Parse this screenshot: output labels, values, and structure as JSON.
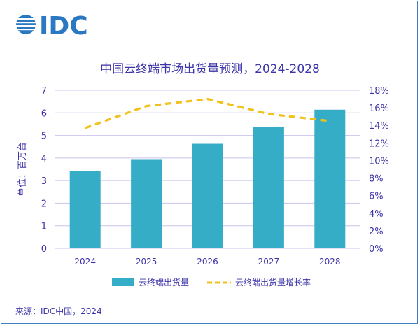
{
  "logo": {
    "text": "IDC"
  },
  "source": "来源：IDC中国，2024",
  "colors": {
    "bar": "#36adc6",
    "line": "#f2c11c",
    "axis_text": "#3c34a8",
    "grid": "#c9c4ee",
    "title": "#3c34a8",
    "logo": "#2a78c2"
  },
  "chart_data": {
    "type": "bar+line",
    "title": "中国云终端市场出货量预测，2024-2028",
    "ylabel": "单位：百万台",
    "categories": [
      "2024",
      "2025",
      "2026",
      "2027",
      "2028"
    ],
    "ylim": [
      0,
      7
    ],
    "y2lim": [
      0,
      18
    ],
    "yticks": [
      "0",
      "1",
      "2",
      "3",
      "4",
      "5",
      "6",
      "7"
    ],
    "y2ticks": [
      "0%",
      "2%",
      "4%",
      "6%",
      "8%",
      "10%",
      "12%",
      "14%",
      "16%",
      "18%"
    ],
    "grid": true,
    "legend_position": "bottom",
    "series": [
      {
        "name": "云终端出货量",
        "type": "bar",
        "axis": "left",
        "values": [
          3.41,
          3.95,
          4.63,
          5.39,
          6.14
        ]
      },
      {
        "name": "云终端出货量增长率",
        "type": "line",
        "style": "dashed",
        "axis": "right",
        "values": [
          13.7,
          16.2,
          17.0,
          15.3,
          14.5
        ]
      }
    ]
  }
}
